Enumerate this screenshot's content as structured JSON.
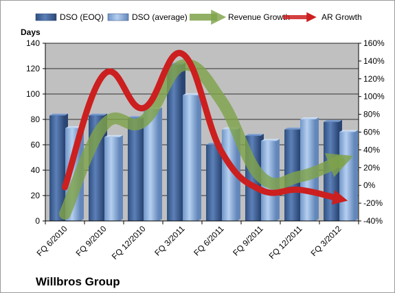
{
  "chart_data": {
    "type": "bar",
    "title": "",
    "caption": "Willbros Group",
    "categories": [
      "FQ 6/2010",
      "FQ 9/2010",
      "FQ 12/2010",
      "FQ 3/2011",
      "FQ 6/2011",
      "FQ 9/2011",
      "FQ 12/2011",
      "FQ 3/2012"
    ],
    "y_left": {
      "label": "Days",
      "range": [
        0,
        140
      ],
      "ticks": [
        0,
        20,
        40,
        60,
        80,
        100,
        120,
        140
      ]
    },
    "y_right": {
      "range": [
        -40,
        160
      ],
      "ticks": [
        "-40%",
        "-20%",
        "0%",
        "20%",
        "40%",
        "60%",
        "80%",
        "100%",
        "120%",
        "140%",
        "160%"
      ]
    },
    "series": [
      {
        "name": "DSO (EOQ)",
        "kind": "bar",
        "axis": "left",
        "color": "#4a6fa5",
        "values": [
          83,
          83,
          81,
          123,
          60,
          67,
          72,
          78
        ]
      },
      {
        "name": "DSO (average)",
        "kind": "bar",
        "axis": "left",
        "color": "#92b4df",
        "values": [
          73,
          66,
          88,
          99,
          72,
          63,
          80,
          70
        ]
      },
      {
        "name": "Revenue Growth",
        "kind": "line",
        "axis": "right",
        "color": "#7fa24a",
        "values": [
          -32,
          68,
          72,
          135,
          95,
          10,
          10,
          27
        ]
      },
      {
        "name": "AR Growth",
        "kind": "line",
        "axis": "right",
        "color": "#cc1f1f",
        "values": [
          -2,
          125,
          87,
          148,
          38,
          -5,
          -5,
          -15
        ]
      }
    ],
    "grid": true,
    "legend": "top",
    "background": "#c0c0c0"
  }
}
